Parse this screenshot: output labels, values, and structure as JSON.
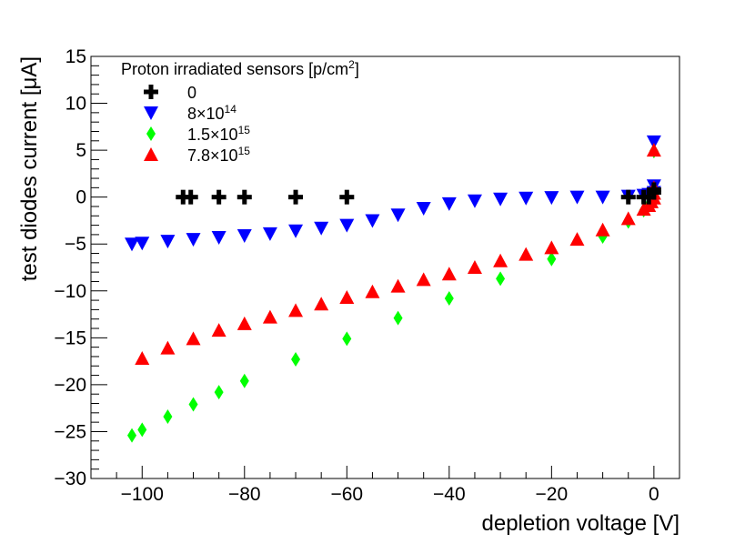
{
  "chart_data": {
    "type": "scatter",
    "xlabel": "depletion voltage [V]",
    "ylabel": "test diodes current [μA]",
    "xlim": [
      -110,
      5
    ],
    "ylim": [
      -30,
      15
    ],
    "xticks": [
      -100,
      -80,
      -60,
      -40,
      -20,
      0
    ],
    "xtick_labels": [
      "−100",
      "−80",
      "−60",
      "−40",
      "−20",
      "0"
    ],
    "yticks": [
      -30,
      -25,
      -20,
      -15,
      -10,
      -5,
      0,
      5,
      10,
      15
    ],
    "ytick_labels": [
      "−30",
      "−25",
      "−20",
      "−15",
      "−10",
      "−5",
      "0",
      "5",
      "10",
      "15"
    ],
    "grid": false,
    "legend": {
      "position": "top-left",
      "title": "Proton irradiated sensors [p/cm",
      "title_sup": "2",
      "title_end": "]"
    },
    "series": [
      {
        "name": "0",
        "label_base": "0",
        "label_exp": "",
        "marker": "cross",
        "color": "#000000",
        "points": [
          [
            -92,
            0
          ],
          [
            -90.5,
            0
          ],
          [
            -85,
            0
          ],
          [
            -80,
            0
          ],
          [
            -70,
            0
          ],
          [
            -60,
            0
          ],
          [
            -5,
            0
          ],
          [
            -2,
            0
          ],
          [
            -1,
            0
          ],
          [
            0,
            0.5
          ],
          [
            0,
            0.8
          ]
        ]
      },
      {
        "name": "8×10^14",
        "label_base": "8×10",
        "label_exp": "14",
        "marker": "triangle-down",
        "color": "#0000ff",
        "points": [
          [
            -102,
            -5
          ],
          [
            -100,
            -4.9
          ],
          [
            -95,
            -4.7
          ],
          [
            -90,
            -4.5
          ],
          [
            -85,
            -4.3
          ],
          [
            -80,
            -4.1
          ],
          [
            -75,
            -3.9
          ],
          [
            -70,
            -3.6
          ],
          [
            -65,
            -3.3
          ],
          [
            -60,
            -3.0
          ],
          [
            -55,
            -2.5
          ],
          [
            -50,
            -1.9
          ],
          [
            -45,
            -1.2
          ],
          [
            -40,
            -0.7
          ],
          [
            -35,
            -0.4
          ],
          [
            -30,
            -0.2
          ],
          [
            -25,
            -0.1
          ],
          [
            -20,
            -0.05
          ],
          [
            -15,
            0
          ],
          [
            -10,
            0
          ],
          [
            -5,
            0.1
          ],
          [
            -2,
            0.2
          ],
          [
            -1,
            0.3
          ],
          [
            0,
            0.5
          ],
          [
            0,
            1.2
          ],
          [
            0,
            5.9
          ]
        ]
      },
      {
        "name": "1.5×10^15",
        "label_base": "1.5×10",
        "label_exp": "15",
        "marker": "diamond",
        "color": "#00ff00",
        "points": [
          [
            -102,
            -25.4
          ],
          [
            -100,
            -24.8
          ],
          [
            -95,
            -23.4
          ],
          [
            -90,
            -22.1
          ],
          [
            -85,
            -20.8
          ],
          [
            -80,
            -19.6
          ],
          [
            -70,
            -17.3
          ],
          [
            -60,
            -15.1
          ],
          [
            -50,
            -12.9
          ],
          [
            -40,
            -10.8
          ],
          [
            -30,
            -8.7
          ],
          [
            -20,
            -6.6
          ],
          [
            -10,
            -4.2
          ],
          [
            -5,
            -2.6
          ],
          [
            -2,
            -1.4
          ],
          [
            -1,
            -0.8
          ],
          [
            0,
            -0.3
          ],
          [
            0,
            0.2
          ],
          [
            0,
            4.9
          ]
        ]
      },
      {
        "name": "7.8×10^15",
        "label_base": "7.8×10",
        "label_exp": "15",
        "marker": "triangle-up",
        "color": "#ff0000",
        "points": [
          [
            -100,
            -17.2
          ],
          [
            -95,
            -16.1
          ],
          [
            -90,
            -15.1
          ],
          [
            -85,
            -14.2
          ],
          [
            -80,
            -13.5
          ],
          [
            -75,
            -12.8
          ],
          [
            -70,
            -12.1
          ],
          [
            -65,
            -11.4
          ],
          [
            -60,
            -10.7
          ],
          [
            -55,
            -10.1
          ],
          [
            -50,
            -9.5
          ],
          [
            -45,
            -8.8
          ],
          [
            -40,
            -8.2
          ],
          [
            -35,
            -7.5
          ],
          [
            -30,
            -6.8
          ],
          [
            -25,
            -6.1
          ],
          [
            -20,
            -5.4
          ],
          [
            -15,
            -4.5
          ],
          [
            -10,
            -3.5
          ],
          [
            -5,
            -2.3
          ],
          [
            -2,
            -1.3
          ],
          [
            -1,
            -0.9
          ],
          [
            -0.5,
            -0.5
          ],
          [
            0,
            -0.1
          ],
          [
            0,
            0.4
          ],
          [
            0,
            1.0
          ],
          [
            0,
            5.0
          ]
        ]
      }
    ]
  }
}
